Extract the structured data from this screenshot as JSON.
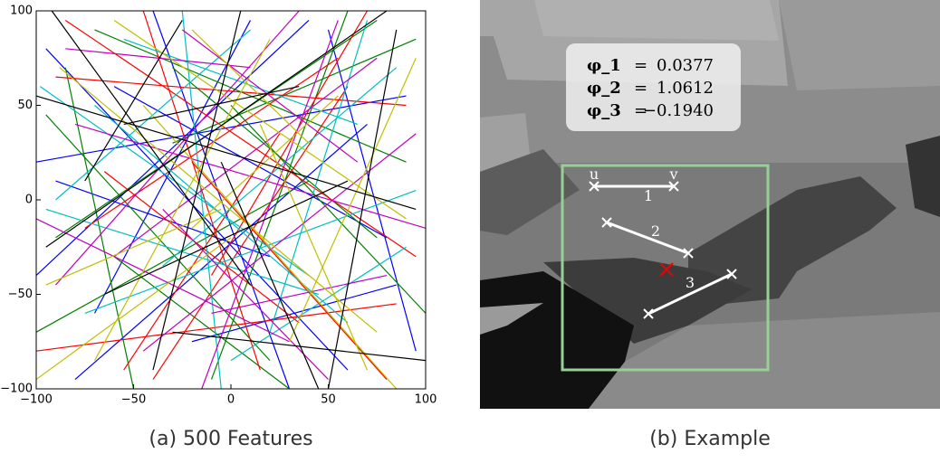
{
  "chart_data": {
    "type": "segments",
    "xlim": [
      -100,
      100
    ],
    "ylim": [
      -100,
      100
    ],
    "xticks": [
      {
        "value": -100,
        "label": "−100"
      },
      {
        "value": -50,
        "label": "−50"
      },
      0,
      50,
      100
    ],
    "yticks": [
      {
        "value": -100,
        "label": "−100"
      },
      {
        "value": -50,
        "label": "−50"
      },
      0,
      50,
      100
    ],
    "series": [
      {
        "color": "#0000ff",
        "segments": [
          [
            -95,
            80,
            60,
            -90
          ],
          [
            -40,
            100,
            30,
            -100
          ],
          [
            -100,
            20,
            90,
            55
          ],
          [
            10,
            95,
            -70,
            -60
          ],
          [
            50,
            90,
            95,
            -80
          ],
          [
            -80,
            -95,
            70,
            40
          ],
          [
            -60,
            60,
            80,
            -20
          ],
          [
            20,
            -30,
            -90,
            10
          ],
          [
            -20,
            -75,
            85,
            -45
          ],
          [
            -100,
            -40,
            40,
            95
          ]
        ]
      },
      {
        "color": "#008000",
        "segments": [
          [
            -90,
            -20,
            75,
            95
          ],
          [
            60,
            100,
            -10,
            -95
          ],
          [
            -70,
            90,
            90,
            20
          ],
          [
            -50,
            -100,
            -85,
            70
          ],
          [
            0,
            50,
            100,
            -60
          ],
          [
            30,
            -100,
            -60,
            -30
          ],
          [
            -95,
            45,
            20,
            -85
          ],
          [
            75,
            -20,
            -30,
            70
          ],
          [
            -30,
            30,
            95,
            85
          ],
          [
            40,
            10,
            -100,
            -70
          ]
        ]
      },
      {
        "color": "#ff0000",
        "segments": [
          [
            -85,
            95,
            95,
            -30
          ],
          [
            15,
            -90,
            -45,
            100
          ],
          [
            -100,
            -80,
            85,
            -55
          ],
          [
            55,
            75,
            -75,
            -15
          ],
          [
            -10,
            -40,
            70,
            100
          ],
          [
            80,
            -95,
            -20,
            20
          ],
          [
            -65,
            15,
            35,
            -65
          ],
          [
            90,
            50,
            -90,
            65
          ],
          [
            -40,
            -95,
            60,
            60
          ],
          [
            25,
            35,
            -55,
            -90
          ]
        ]
      },
      {
        "color": "#00bfbf",
        "segments": [
          [
            -98,
            60,
            40,
            -40
          ],
          [
            70,
            95,
            20,
            -70
          ],
          [
            -75,
            -60,
            95,
            5
          ],
          [
            -25,
            100,
            -5,
            -100
          ],
          [
            45,
            -50,
            -95,
            -5
          ],
          [
            85,
            70,
            -35,
            -35
          ],
          [
            -55,
            85,
            65,
            40
          ],
          [
            0,
            -85,
            90,
            -25
          ],
          [
            -90,
            0,
            10,
            90
          ],
          [
            60,
            -65,
            -70,
            50
          ]
        ]
      },
      {
        "color": "#bf00bf",
        "segments": [
          [
            -80,
            40,
            100,
            -15
          ],
          [
            35,
            100,
            -90,
            -45
          ],
          [
            -15,
            -100,
            55,
            95
          ],
          [
            -100,
            -10,
            30,
            -75
          ],
          [
            95,
            35,
            -45,
            -80
          ],
          [
            -60,
            -30,
            75,
            75
          ],
          [
            10,
            70,
            -85,
            80
          ],
          [
            80,
            -40,
            -10,
            -60
          ],
          [
            -35,
            -5,
            50,
            -95
          ],
          [
            65,
            20,
            -25,
            90
          ]
        ]
      },
      {
        "color": "#bfbf00",
        "segments": [
          [
            -70,
            -85,
            20,
            85
          ],
          [
            90,
            -10,
            -60,
            95
          ],
          [
            -45,
            50,
            85,
            -100
          ],
          [
            0,
            -20,
            -100,
            -95
          ],
          [
            55,
            55,
            -20,
            -15
          ],
          [
            -88,
            70,
            75,
            -70
          ],
          [
            30,
            -75,
            95,
            75
          ],
          [
            -20,
            90,
            40,
            30
          ],
          [
            -95,
            -45,
            -5,
            -5
          ],
          [
            70,
            -90,
            15,
            40
          ]
        ]
      },
      {
        "color": "#000000",
        "segments": [
          [
            -92,
            100,
            10,
            -45
          ],
          [
            50,
            -100,
            85,
            90
          ],
          [
            -65,
            -50,
            60,
            10
          ],
          [
            5,
            100,
            -40,
            -90
          ],
          [
            -100,
            55,
            95,
            -5
          ],
          [
            80,
            100,
            -95,
            -25
          ],
          [
            -30,
            -70,
            100,
            -85
          ],
          [
            35,
            60,
            -55,
            40
          ],
          [
            -5,
            20,
            45,
            -100
          ],
          [
            -75,
            10,
            -25,
            95
          ]
        ]
      }
    ]
  },
  "captions": [
    "(a) 500 Features",
    "(b) Example"
  ],
  "example": {
    "params": [
      [
        "φ_1",
        "=",
        "0.0377"
      ],
      [
        "φ_2",
        "=",
        "1.0612"
      ],
      [
        "φ_3",
        "=",
        "−0.1940"
      ]
    ],
    "point_labels": [
      "u",
      "v"
    ],
    "feature_labels": [
      "1",
      "2",
      "3"
    ]
  }
}
